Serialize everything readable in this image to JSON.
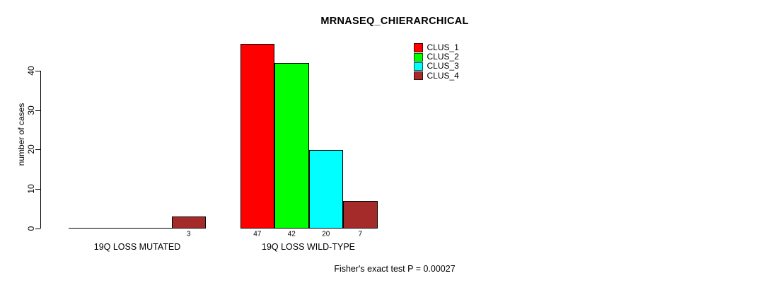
{
  "page": {
    "background": "#ffffff"
  },
  "chart_data": {
    "type": "bar",
    "title": "MRNASEQ_CHIERARCHICAL",
    "ylabel": "number of cases",
    "xlabel": "",
    "categories": [
      "19Q LOSS MUTATED",
      "19Q LOSS WILD-TYPE"
    ],
    "series": [
      {
        "name": "CLUS_1",
        "color": "#FF0000",
        "values": [
          0,
          47
        ]
      },
      {
        "name": "CLUS_2",
        "color": "#00FF00",
        "values": [
          0,
          42
        ]
      },
      {
        "name": "CLUS_3",
        "color": "#00FFFF",
        "values": [
          0,
          20
        ]
      },
      {
        "name": "CLUS_4",
        "color": "#A52A2A",
        "values": [
          3,
          7
        ]
      }
    ],
    "bar_value_labels": [
      [
        "",
        "",
        "",
        "3"
      ],
      [
        "47",
        "42",
        "20",
        "7"
      ]
    ],
    "yticks": [
      0,
      10,
      20,
      30,
      40
    ],
    "ylim": [
      0,
      47
    ],
    "grid": false,
    "legend_position": "top-right",
    "legend_entries": [
      "CLUS_1",
      "CLUS_2",
      "CLUS_3",
      "CLUS_4"
    ],
    "annotation": "Fisher's exact test P = 0.00027"
  }
}
